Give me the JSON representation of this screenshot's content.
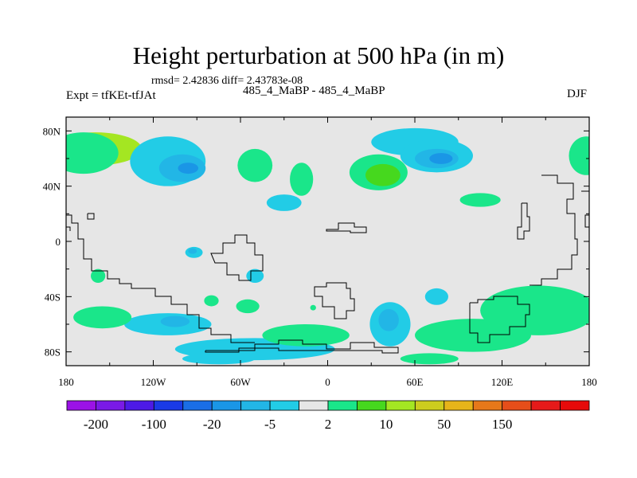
{
  "header": {
    "title": "Height perturbation at 500 hPa (in m)",
    "stats": "rmsd= 2.42836 diff= 2.43783e-08",
    "left_label": "Expt = tfKEt-tfJAt",
    "center_label": "485_4_MaBP - 485_4_MaBP",
    "right_label": "DJF"
  },
  "chart_data": {
    "type": "heatmap",
    "title": "Height perturbation at 500 hPa (in m)",
    "subtitle": "485_4_MaBP - 485_4_MaBP",
    "xlabel": "",
    "ylabel": "",
    "x_ticks": [
      "180",
      "120W",
      "60W",
      "0",
      "60E",
      "120E",
      "180"
    ],
    "y_ticks": [
      "80N",
      "40N",
      "0",
      "40S",
      "80S"
    ],
    "xlim": [
      -180,
      180
    ],
    "ylim": [
      -90,
      90
    ],
    "colorbar": {
      "colors": [
        "#9b12e6",
        "#7a1ae6",
        "#4d1ae6",
        "#1a3ae6",
        "#1a6ee6",
        "#1a96e6",
        "#22b6e6",
        "#22cce6",
        "#e6e6e6",
        "#1ae68a",
        "#46d81e",
        "#a4e622",
        "#cccc1e",
        "#e6b41a",
        "#e6781a",
        "#e64e1a",
        "#e61a1a",
        "#e60a0a"
      ],
      "labels": [
        "-200",
        "-100",
        "-20",
        "-5",
        "2",
        "10",
        "50",
        "150"
      ],
      "label_after_swatch": [
        0,
        2,
        4,
        6,
        8,
        10,
        12,
        14
      ]
    },
    "anomalies": [
      {
        "lon": -160,
        "lat": 67,
        "w": 32,
        "h": 12,
        "level": 3
      },
      {
        "lon": -162,
        "lat": 66,
        "w": 14,
        "h": 6,
        "level": 4
      },
      {
        "lon": -168,
        "lat": 64,
        "w": 24,
        "h": 15,
        "level": 1
      },
      {
        "lon": -110,
        "lat": 58,
        "w": 26,
        "h": 18,
        "level": -1
      },
      {
        "lon": -100,
        "lat": 53,
        "w": 16,
        "h": 10,
        "level": -2
      },
      {
        "lon": -96,
        "lat": 53,
        "w": 7,
        "h": 4,
        "level": -3
      },
      {
        "lon": -50,
        "lat": 55,
        "w": 12,
        "h": 12,
        "level": 1
      },
      {
        "lon": -18,
        "lat": 45,
        "w": 8,
        "h": 12,
        "level": 1
      },
      {
        "lon": -30,
        "lat": 28,
        "w": 12,
        "h": 6,
        "level": -1
      },
      {
        "lon": 35,
        "lat": 50,
        "w": 20,
        "h": 13,
        "level": 1
      },
      {
        "lon": 38,
        "lat": 48,
        "w": 12,
        "h": 8,
        "level": 2
      },
      {
        "lon": 60,
        "lat": 72,
        "w": 30,
        "h": 10,
        "level": -1
      },
      {
        "lon": 75,
        "lat": 62,
        "w": 25,
        "h": 12,
        "level": -1
      },
      {
        "lon": 75,
        "lat": 60,
        "w": 15,
        "h": 7,
        "level": -2
      },
      {
        "lon": 78,
        "lat": 60,
        "w": 8,
        "h": 4,
        "level": -3
      },
      {
        "lon": 105,
        "lat": 30,
        "w": 14,
        "h": 5,
        "level": 1
      },
      {
        "lon": 178,
        "lat": 62,
        "w": 12,
        "h": 14,
        "level": 1
      },
      {
        "lon": -110,
        "lat": -60,
        "w": 30,
        "h": 8,
        "level": -1
      },
      {
        "lon": -105,
        "lat": -58,
        "w": 10,
        "h": 4,
        "level": -2
      },
      {
        "lon": -155,
        "lat": -55,
        "w": 20,
        "h": 8,
        "level": 1
      },
      {
        "lon": -158,
        "lat": -25,
        "w": 5,
        "h": 5,
        "level": 1
      },
      {
        "lon": -55,
        "lat": -47,
        "w": 8,
        "h": 5,
        "level": 1
      },
      {
        "lon": -50,
        "lat": -78,
        "w": 55,
        "h": 8,
        "level": -1
      },
      {
        "lon": -75,
        "lat": -85,
        "w": 25,
        "h": 4,
        "level": -1
      },
      {
        "lon": -15,
        "lat": -68,
        "w": 30,
        "h": 8,
        "level": 1
      },
      {
        "lon": 43,
        "lat": -60,
        "w": 14,
        "h": 16,
        "level": -1
      },
      {
        "lon": 42,
        "lat": -57,
        "w": 7,
        "h": 8,
        "level": -2
      },
      {
        "lon": 75,
        "lat": -40,
        "w": 8,
        "h": 6,
        "level": -1
      },
      {
        "lon": 145,
        "lat": -50,
        "w": 40,
        "h": 18,
        "level": 1
      },
      {
        "lon": 100,
        "lat": -68,
        "w": 40,
        "h": 12,
        "level": 1
      },
      {
        "lon": 70,
        "lat": -85,
        "w": 20,
        "h": 4,
        "level": 1
      },
      {
        "lon": -92,
        "lat": -8,
        "w": 6,
        "h": 4,
        "level": -1
      },
      {
        "lon": -93,
        "lat": -7,
        "w": 3,
        "h": 2,
        "level": -2
      },
      {
        "lon": -50,
        "lat": -25,
        "w": 6,
        "h": 5,
        "level": -1
      },
      {
        "lon": -80,
        "lat": -43,
        "w": 5,
        "h": 4,
        "level": 1
      },
      {
        "lon": -10,
        "lat": -48,
        "w": 2,
        "h": 2,
        "level": 1
      }
    ]
  }
}
